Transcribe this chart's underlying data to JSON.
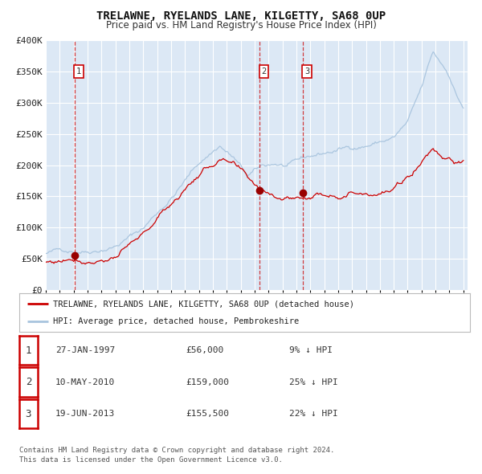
{
  "title": "TRELAWNE, RYELANDS LANE, KILGETTY, SA68 0UP",
  "subtitle": "Price paid vs. HM Land Registry's House Price Index (HPI)",
  "title_fontsize": 10,
  "subtitle_fontsize": 8.5,
  "hpi_color": "#a8c4de",
  "price_color": "#cc0000",
  "bg_color": "#dce8f5",
  "plot_bg_color": "#dce8f5",
  "grid_color": "#ffffff",
  "legend_border_color": "#bbbbbb",
  "purchases": [
    {
      "date_decimal": 1997.07,
      "price": 56000,
      "label": "1",
      "pct": "9% ↓ HPI",
      "date_str": "27-JAN-1997",
      "price_str": "£56,000"
    },
    {
      "date_decimal": 2010.36,
      "price": 159000,
      "label": "2",
      "pct": "25% ↓ HPI",
      "date_str": "10-MAY-2010",
      "price_str": "£159,000"
    },
    {
      "date_decimal": 2013.46,
      "price": 155500,
      "label": "3",
      "pct": "22% ↓ HPI",
      "date_str": "19-JUN-2013",
      "price_str": "£155,500"
    }
  ],
  "legend_label_red": "TRELAWNE, RYELANDS LANE, KILGETTY, SA68 0UP (detached house)",
  "legend_label_blue": "HPI: Average price, detached house, Pembrokeshire",
  "footer1": "Contains HM Land Registry data © Crown copyright and database right 2024.",
  "footer2": "This data is licensed under the Open Government Licence v3.0.",
  "ylim": [
    0,
    400000
  ],
  "xlim": [
    1995.0,
    2025.3
  ],
  "yticks": [
    0,
    50000,
    100000,
    150000,
    200000,
    250000,
    300000,
    350000,
    400000
  ],
  "ytick_labels": [
    "£0",
    "£50K",
    "£100K",
    "£150K",
    "£200K",
    "£250K",
    "£300K",
    "£350K",
    "£400K"
  ]
}
